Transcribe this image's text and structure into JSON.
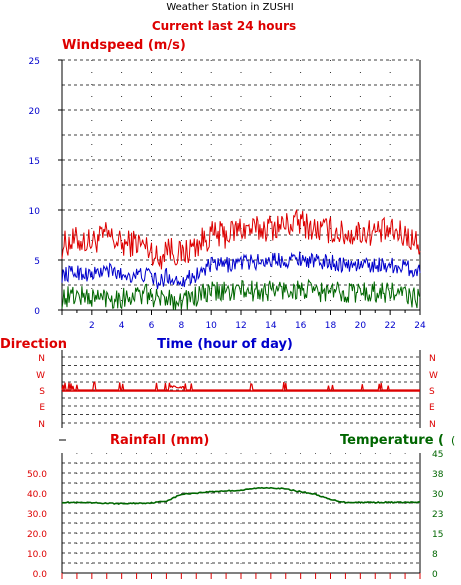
{
  "header": {
    "title": "Weather Station in ZUSHI",
    "subtitle": "Current last 24 hours"
  },
  "colors": {
    "red": "#dd0000",
    "blue": "#0000cc",
    "green": "#006600",
    "black": "#000000"
  },
  "chart_data": [
    {
      "type": "line",
      "title": "Windspeed (m/s)",
      "xlabel": "Time (hour of day)",
      "ylabel": "",
      "xlim": [
        0,
        24
      ],
      "ylim": [
        0,
        25
      ],
      "x_ticks": [
        "2",
        "4",
        "6",
        "8",
        "10",
        "12",
        "14",
        "16",
        "18",
        "20",
        "22",
        "24"
      ],
      "y_ticks": [
        "0",
        "5",
        "10",
        "15",
        "20",
        "25"
      ],
      "grid": true,
      "x": [
        0,
        1,
        2,
        3,
        4,
        5,
        6,
        6.5,
        7,
        7.5,
        8,
        9,
        10,
        11,
        12,
        13,
        14,
        15,
        16,
        17,
        18,
        19,
        20,
        21,
        22,
        23,
        24
      ],
      "series": [
        {
          "values": [
            6.5,
            7.0,
            6.8,
            7.5,
            6.5,
            6.8,
            6.0,
            4.8,
            6.5,
            5.8,
            5.5,
            6.5,
            7.5,
            7.5,
            8.2,
            8.0,
            8.3,
            8.5,
            8.8,
            8.0,
            8.0,
            7.5,
            7.8,
            7.8,
            7.8,
            7.5,
            6.5
          ]
        },
        {
          "values": [
            3.5,
            3.8,
            3.5,
            4.0,
            3.5,
            3.5,
            3.5,
            2.5,
            3.5,
            3.0,
            3.0,
            3.5,
            4.5,
            4.5,
            4.8,
            4.8,
            5.0,
            5.0,
            5.2,
            4.8,
            4.8,
            4.5,
            4.5,
            4.5,
            4.5,
            4.3,
            3.8
          ]
        },
        {
          "values": [
            1.2,
            1.5,
            1.2,
            1.3,
            1.2,
            1.5,
            1.5,
            0.8,
            1.5,
            1.0,
            1.0,
            1.3,
            1.8,
            1.8,
            2.0,
            1.8,
            2.0,
            2.0,
            2.0,
            1.8,
            1.8,
            1.8,
            1.8,
            1.8,
            1.8,
            1.5,
            1.0
          ]
        }
      ]
    },
    {
      "type": "line",
      "title": "Direction",
      "xlim": [
        0,
        24
      ],
      "y_ticks": [
        "N",
        "W",
        "S",
        "E",
        "N"
      ],
      "grid": true,
      "series": [
        {
          "values_desc": "mostly S",
          "level": "S"
        }
      ]
    },
    {
      "type": "line",
      "title": "Rainfall (mm)",
      "secondary_title": "Temperature (",
      "xlim": [
        0,
        24
      ],
      "ylim": [
        0,
        60
      ],
      "y_ticks_left": [
        "0.0",
        "10.0",
        "20.0",
        "30.0",
        "40.0",
        "50.0"
      ],
      "y2lim": [
        0,
        45
      ],
      "y_ticks_right": [
        "0",
        "8",
        "15",
        "23",
        "30",
        "38",
        "45"
      ],
      "grid": true,
      "x": [
        0,
        2,
        4,
        6,
        7,
        8,
        9,
        10,
        11,
        12,
        13,
        14,
        15,
        16,
        17,
        18,
        19,
        20,
        22,
        24
      ],
      "series": [
        {
          "axis": "right",
          "values": [
            26.5,
            26.3,
            26.0,
            26.3,
            27,
            29.5,
            30,
            30.5,
            30.8,
            31,
            31.8,
            32.0,
            31.5,
            30.5,
            29.5,
            27.5,
            26.5,
            26.5,
            26.5,
            26.5
          ]
        }
      ]
    }
  ]
}
